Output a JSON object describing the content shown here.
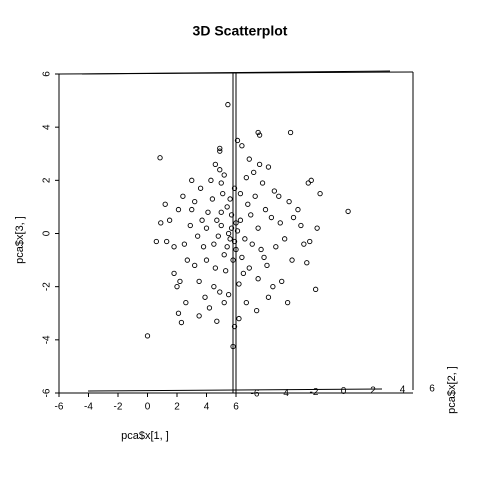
{
  "chart_data": {
    "type": "scatter",
    "title": "3D Scatterplot",
    "xlabel": "pca$x[1, ]",
    "ylabel": "pca$x[3, ]",
    "zlabel": "pca$x[2, ]",
    "xlim": [
      -6,
      18
    ],
    "xticks": [
      -6,
      -4,
      -2,
      0,
      2,
      4,
      6
    ],
    "ylim": [
      -6,
      6
    ],
    "yticks": [
      -6,
      -4,
      -2,
      0,
      2,
      4,
      6
    ],
    "zlim": [
      -6,
      6
    ],
    "zticks": [
      -6,
      -4,
      -2,
      0,
      2,
      4,
      6
    ],
    "color": "#000000",
    "x": [
      3.2,
      4.1,
      5.0,
      5.6,
      6.3,
      7.1,
      5.2,
      4.6,
      6.8,
      7.5,
      3.8,
      2.9,
      5.9,
      6.5,
      4.3,
      7.9,
      8.4,
      5.4,
      6.0,
      4.8,
      3.5,
      2.5,
      2.1,
      1.8,
      1.3,
      8.9,
      9.3,
      9.8,
      10.4,
      10.9,
      11.1,
      10.6,
      11.5,
      9.1,
      8.2,
      7.4,
      6.2,
      5.9,
      5.5,
      4.9,
      4.5,
      4.2,
      3.5,
      2.6,
      2.2,
      2.0,
      1.8,
      3.0,
      3.6,
      4.6,
      4.9,
      5.2,
      6.7,
      7.2,
      7.8,
      8.2,
      8.6,
      9.6,
      10.2,
      6.4,
      6.9,
      7.6,
      3.0,
      3.4,
      4.0,
      4.4,
      5.1,
      5.7,
      6.1,
      6.6,
      7.0,
      7.7,
      8.1,
      8.7,
      5.3,
      5.8,
      6.2,
      6.9,
      4.0,
      3.2,
      2.7,
      1.5,
      0.6,
      0.9,
      5.5,
      5.7,
      5.9,
      6.0,
      5.4,
      5.0,
      6.4,
      4.7,
      7.3,
      8.0,
      8.5,
      9.5,
      3.9,
      4.7,
      5.6,
      6.3,
      5.0,
      4.5,
      3.7,
      2.4,
      1.2,
      9.0,
      9.9,
      7.5,
      6.7,
      5.2,
      10.8,
      11.0,
      0.85,
      0.0,
      5.45,
      13.6,
      9.7,
      11.4,
      11.7,
      5.8,
      2.1,
      2.3,
      7.5,
      7.6,
      4.9,
      4.9,
      6.1
    ],
    "values": [
      1.2,
      0.8,
      0.3,
      -0.2,
      0.5,
      -0.4,
      -0.8,
      -1.3,
      1.1,
      0.2,
      -0.5,
      0.3,
      1.7,
      -1.5,
      2.0,
      -0.9,
      0.6,
      1.0,
      -0.6,
      -0.1,
      -1.8,
      -0.4,
      0.9,
      -0.5,
      -0.3,
      1.4,
      -0.2,
      -1.0,
      0.3,
      1.9,
      2.0,
      -0.4,
      0.2,
      -1.8,
      -2.4,
      -2.9,
      -3.2,
      -3.5,
      -2.3,
      -2.2,
      -2.0,
      -2.8,
      -3.1,
      -2.6,
      -1.8,
      -2.0,
      -1.5,
      2.0,
      1.7,
      2.6,
      2.4,
      2.2,
      2.1,
      2.3,
      1.9,
      2.5,
      1.6,
      1.2,
      0.9,
      3.3,
      2.8,
      2.6,
      0.9,
      -0.1,
      0.2,
      1.3,
      1.5,
      0.7,
      0.1,
      -0.2,
      0.7,
      -0.6,
      -1.2,
      -0.5,
      -1.4,
      -1.0,
      -1.9,
      -1.3,
      -1.0,
      -1.2,
      -1.0,
      0.5,
      -0.3,
      0.4,
      0.0,
      0.2,
      -0.3,
      0.4,
      -0.5,
      0.8,
      -0.9,
      0.5,
      1.4,
      0.9,
      -2.0,
      -2.6,
      -2.4,
      -3.3,
      1.3,
      1.5,
      1.9,
      -0.4,
      0.5,
      1.4,
      1.1,
      0.4,
      0.6,
      -1.7,
      -2.6,
      -2.6,
      -1.1,
      -0.3,
      2.85,
      -3.85,
      4.85,
      0.83,
      3.8,
      -2.1,
      1.5,
      -4.25,
      -3.0,
      -3.35,
      3.8,
      3.7,
      3.2,
      3.1,
      3.5
    ]
  }
}
